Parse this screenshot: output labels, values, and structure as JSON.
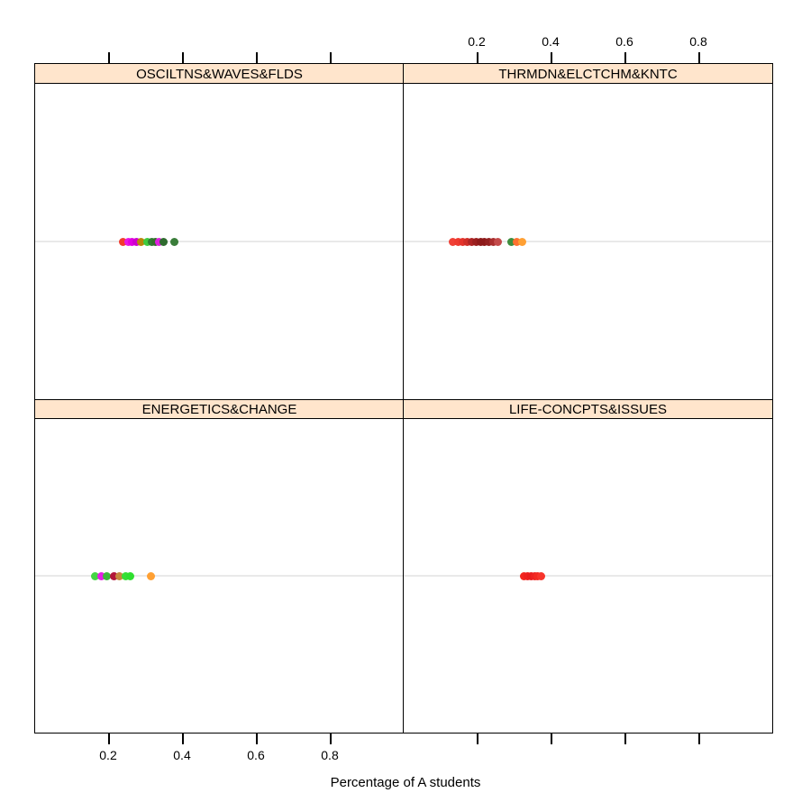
{
  "chart_data": {
    "type": "scatter",
    "variant": "lattice 2x2 strip plot, one category row per panel",
    "title": "",
    "xlabel": "Percentage of A students",
    "ylabel": "",
    "xlim": [
      0,
      1
    ],
    "x_ticks": [
      0.2,
      0.4,
      0.6,
      0.8
    ],
    "x_tick_labels": [
      "0.2",
      "0.4",
      "0.6",
      "0.8"
    ],
    "legend": "none",
    "grid": "single faint horizontal reference line at the dot row of each panel",
    "panels": [
      {
        "name": "OSCILTNS&WAVES&FLDS",
        "grid_pos": "top-left",
        "axis_labels_shown": "ticks top (unlabeled), none bottom",
        "points": [
          {
            "x": 0.238,
            "color": "#f23b2e"
          },
          {
            "x": 0.252,
            "color": "#e816e8"
          },
          {
            "x": 0.264,
            "color": "#e200e2"
          },
          {
            "x": 0.276,
            "color": "#cf00cf"
          },
          {
            "x": 0.287,
            "color": "#b8860b"
          },
          {
            "x": 0.304,
            "color": "#3ecb3e"
          },
          {
            "x": 0.316,
            "color": "#2e7d32"
          },
          {
            "x": 0.327,
            "color": "#346f2b"
          },
          {
            "x": 0.337,
            "color": "#df1fdf"
          },
          {
            "x": 0.348,
            "color": "#2f6b2f"
          },
          {
            "x": 0.378,
            "color": "#3a7d3a"
          }
        ]
      },
      {
        "name": "THRMDN&ELCTCHM&KNTC",
        "grid_pos": "top-right",
        "axis_labels_shown": "ticks and labels on top",
        "points": [
          {
            "x": 0.134,
            "color": "#f04036"
          },
          {
            "x": 0.148,
            "color": "#ee3a30"
          },
          {
            "x": 0.16,
            "color": "#e4332b"
          },
          {
            "x": 0.172,
            "color": "#cf2e28"
          },
          {
            "x": 0.184,
            "color": "#ae2424"
          },
          {
            "x": 0.196,
            "color": "#9b1f1f"
          },
          {
            "x": 0.208,
            "color": "#8d1a1a"
          },
          {
            "x": 0.22,
            "color": "#8d1a1a"
          },
          {
            "x": 0.232,
            "color": "#932121"
          },
          {
            "x": 0.244,
            "color": "#aa2e2e"
          },
          {
            "x": 0.256,
            "color": "#c34a4a"
          },
          {
            "x": 0.292,
            "color": "#3e8e3e"
          },
          {
            "x": 0.308,
            "color": "#fe7130"
          },
          {
            "x": 0.322,
            "color": "#ffa033"
          }
        ]
      },
      {
        "name": "ENERGETICS&CHANGE",
        "grid_pos": "bottom-left",
        "axis_labels_shown": "ticks and labels on bottom",
        "points": [
          {
            "x": 0.163,
            "color": "#44d644"
          },
          {
            "x": 0.18,
            "color": "#e51ee5"
          },
          {
            "x": 0.194,
            "color": "#3cb93c"
          },
          {
            "x": 0.214,
            "color": "#b2173a"
          },
          {
            "x": 0.228,
            "color": "#c5893d"
          },
          {
            "x": 0.245,
            "color": "#35df35"
          },
          {
            "x": 0.258,
            "color": "#2fdf2f"
          },
          {
            "x": 0.314,
            "color": "#ffa033"
          }
        ]
      },
      {
        "name": "LIFE-CONCPTS&ISSUES",
        "grid_pos": "bottom-right",
        "axis_labels_shown": "ticks bottom (unlabeled)",
        "points": [
          {
            "x": 0.327,
            "color": "#f3261f"
          },
          {
            "x": 0.336,
            "color": "#ee1f1f"
          },
          {
            "x": 0.345,
            "color": "#e91d1d"
          },
          {
            "x": 0.355,
            "color": "#ee2222"
          },
          {
            "x": 0.364,
            "color": "#f32a23"
          },
          {
            "x": 0.374,
            "color": "#f7342b"
          }
        ]
      }
    ]
  },
  "style": {
    "background": "#ffffff",
    "strip_bg": "#ffe5cc",
    "border_color": "#000000",
    "refline_color": "#e9e9e9"
  }
}
